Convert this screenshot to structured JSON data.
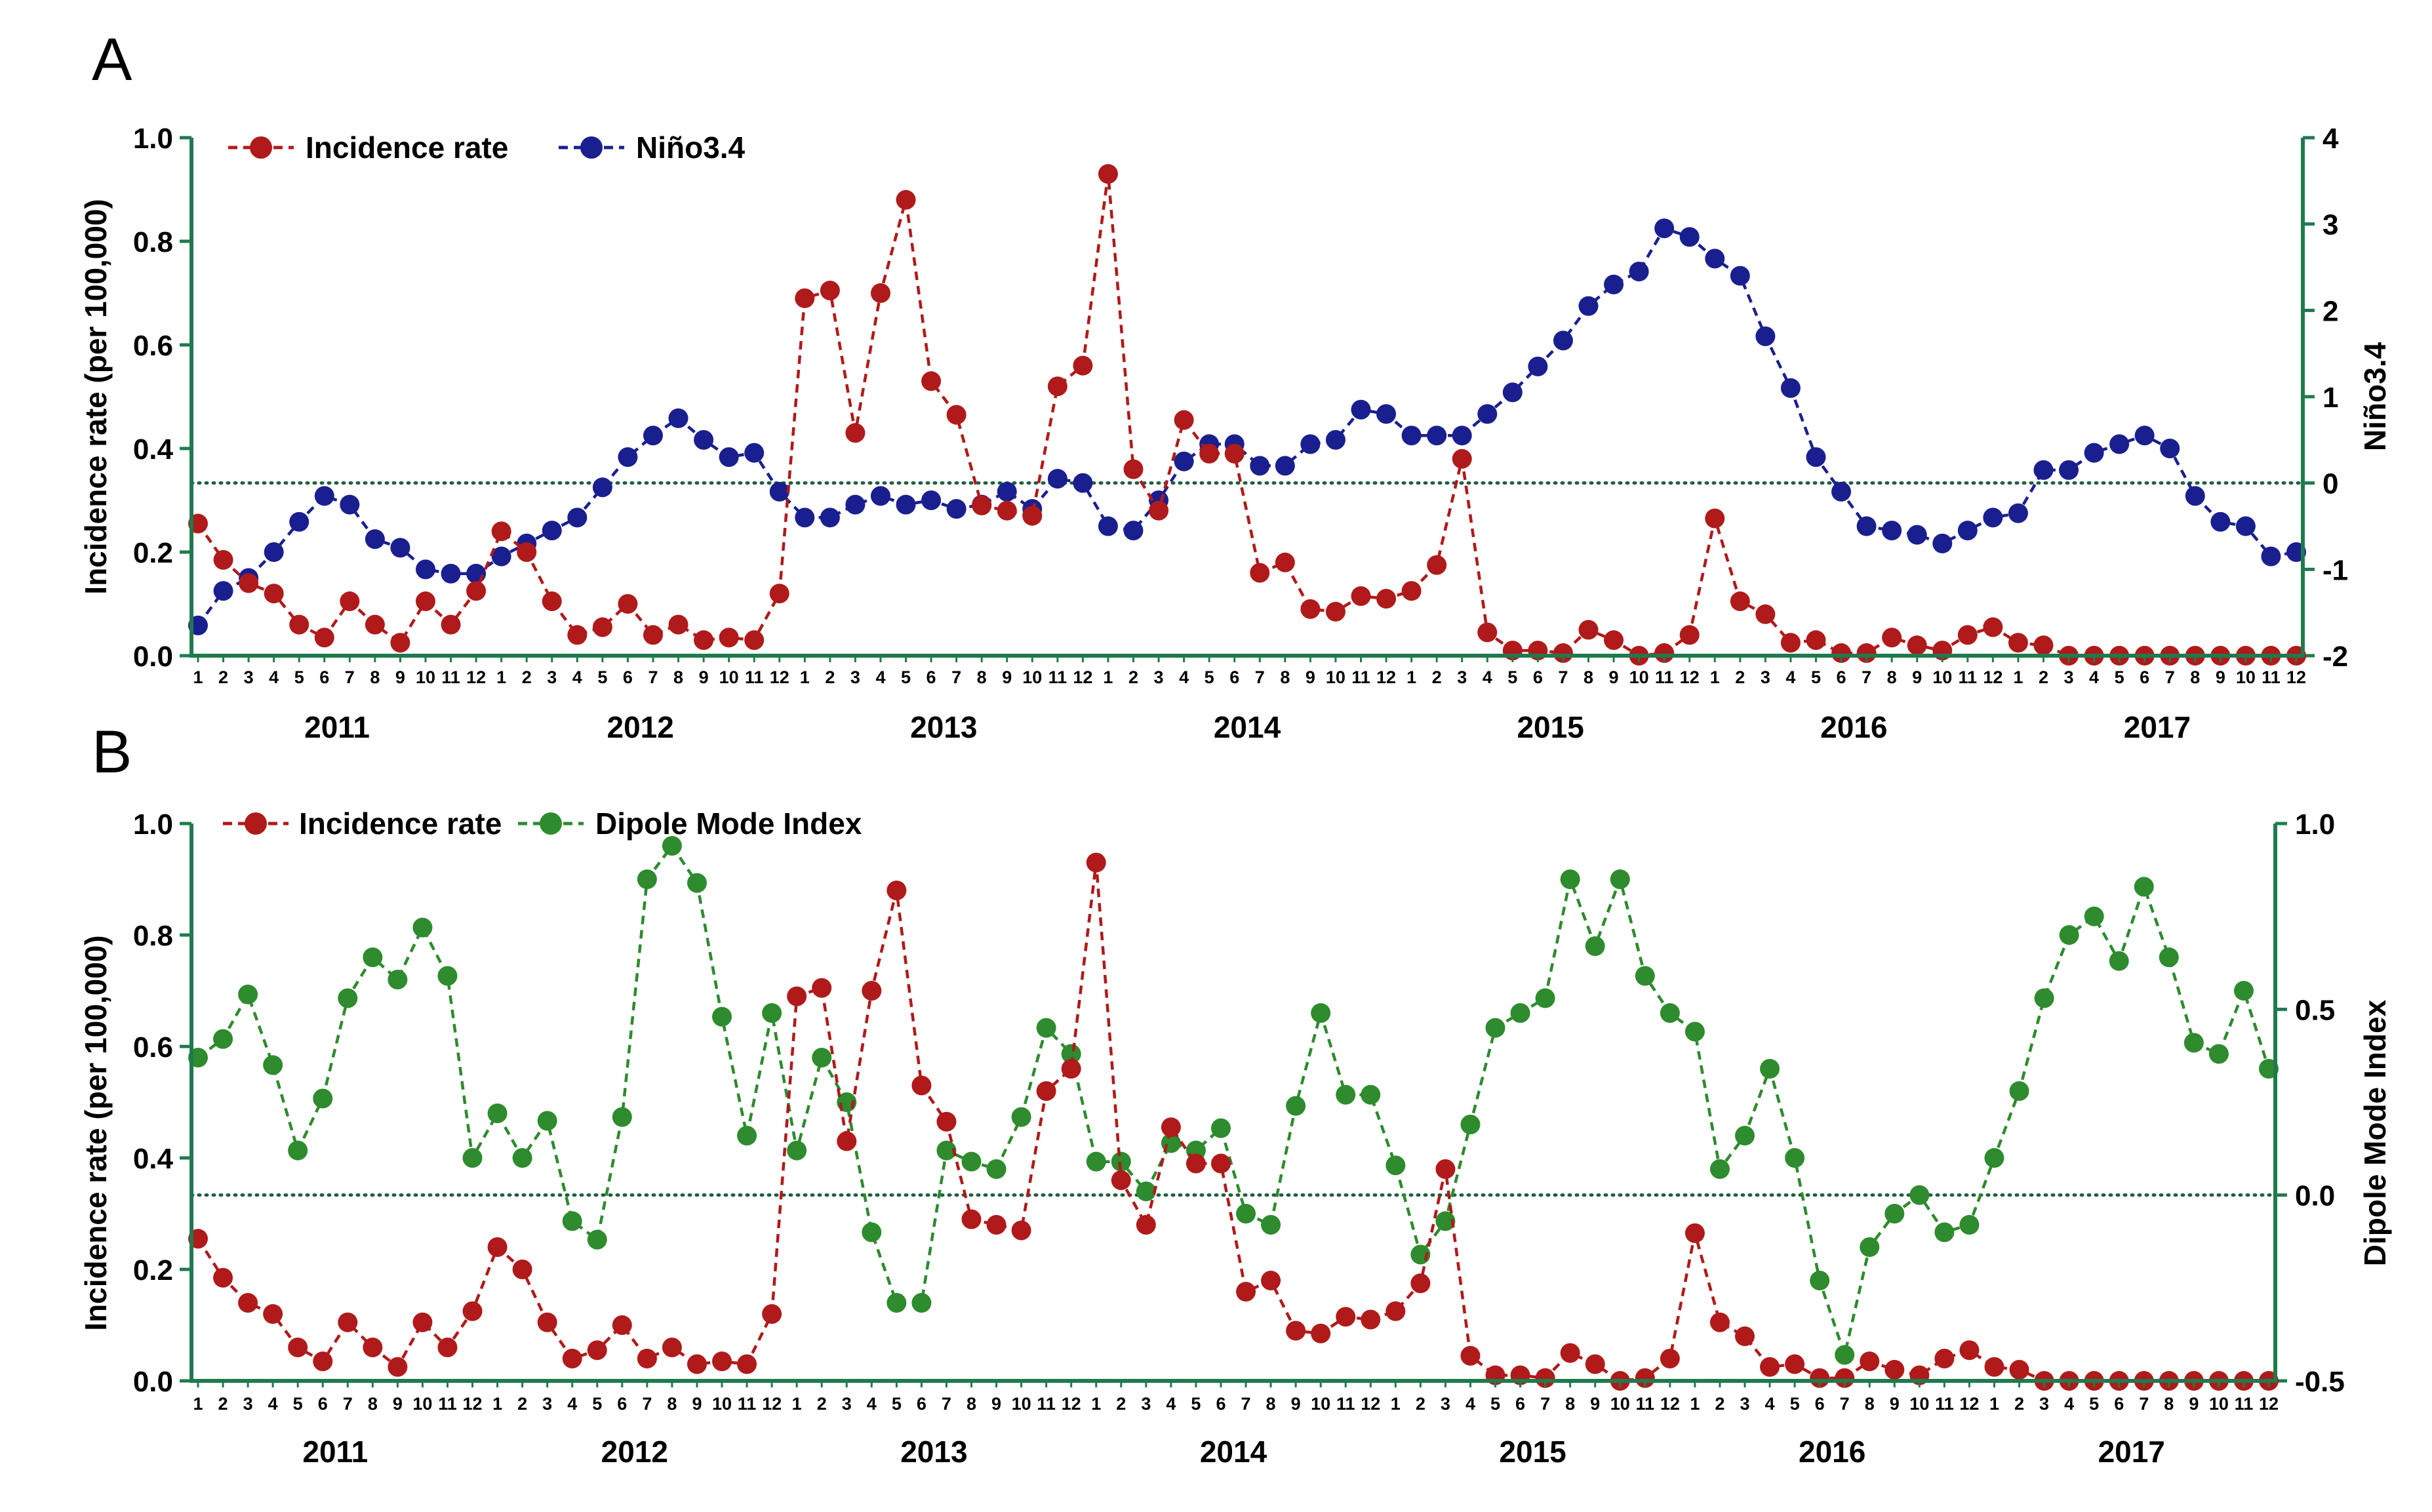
{
  "colors": {
    "axis": "#1f7a4d",
    "incidence": "#b01a1a",
    "nino": "#1a1f8f",
    "dmi": "#2e8b2e",
    "zero_line": "#1f5f3f"
  },
  "month_labels": [
    "1",
    "2",
    "3",
    "4",
    "5",
    "6",
    "7",
    "8",
    "9",
    "10",
    "11",
    "12"
  ],
  "years": [
    "2011",
    "2012",
    "2013",
    "2014",
    "2015",
    "2016",
    "2017"
  ],
  "chart_data": [
    {
      "id": "A",
      "panel_label": "A",
      "type": "line",
      "title": "",
      "xlabel": "",
      "ylabel": "Incidence rate (per 100,000)",
      "y2label": "Niño3.4",
      "ylim": [
        0,
        1.0
      ],
      "y2lim": [
        -2,
        4
      ],
      "yticks": [
        "0.0",
        "0.2",
        "0.4",
        "0.6",
        "0.8",
        "1.0"
      ],
      "y2ticks": [
        "-2",
        "-1",
        "0",
        "1",
        "2",
        "3",
        "4"
      ],
      "reference_line": 0,
      "legend": [
        "Incidence rate",
        "Niño3.4"
      ],
      "legend_position": "top-left",
      "series": [
        {
          "name": "Incidence rate",
          "axis": "left",
          "color_key": "incidence",
          "values": [
            0.255,
            0.185,
            0.14,
            0.12,
            0.06,
            0.035,
            0.105,
            0.06,
            0.025,
            0.105,
            0.06,
            0.125,
            0.24,
            0.2,
            0.105,
            0.04,
            0.055,
            0.1,
            0.04,
            0.06,
            0.03,
            0.035,
            0.03,
            0.12,
            0.69,
            0.705,
            0.43,
            0.7,
            0.88,
            0.53,
            0.465,
            0.29,
            0.28,
            0.27,
            0.52,
            0.56,
            0.93,
            0.36,
            0.28,
            0.455,
            0.39,
            0.39,
            0.16,
            0.18,
            0.09,
            0.085,
            0.115,
            0.11,
            0.125,
            0.175,
            0.38,
            0.045,
            0.01,
            0.01,
            0.005,
            0.05,
            0.03,
            0.0,
            0.005,
            0.04,
            0.265,
            0.105,
            0.08,
            0.025,
            0.03,
            0.005,
            0.005,
            0.035,
            0.02,
            0.01,
            0.04,
            0.055,
            0.025,
            0.02,
            0.0,
            0.0,
            0.0,
            0.0,
            0.0,
            0.0,
            0.0,
            0.0,
            0.0,
            0.0
          ]
        },
        {
          "name": "Niño3.4",
          "axis": "right",
          "color_key": "nino",
          "values": [
            -1.65,
            -1.25,
            -1.1,
            -0.8,
            -0.45,
            -0.15,
            -0.25,
            -0.65,
            -0.75,
            -1.0,
            -1.05,
            -1.05,
            -0.85,
            -0.7,
            -0.55,
            -0.4,
            -0.05,
            0.3,
            0.55,
            0.75,
            0.5,
            0.3,
            0.35,
            -0.1,
            -0.4,
            -0.4,
            -0.25,
            -0.15,
            -0.25,
            -0.2,
            -0.3,
            -0.25,
            -0.1,
            -0.3,
            0.05,
            0.0,
            -0.5,
            -0.55,
            -0.2,
            0.25,
            0.45,
            0.45,
            0.2,
            0.2,
            0.45,
            0.5,
            0.85,
            0.8,
            0.55,
            0.55,
            0.55,
            0.8,
            1.05,
            1.35,
            1.65,
            2.05,
            2.3,
            2.45,
            2.95,
            2.85,
            2.6,
            2.4,
            1.7,
            1.1,
            0.3,
            -0.1,
            -0.5,
            -0.55,
            -0.6,
            -0.7,
            -0.55,
            -0.4,
            -0.35,
            0.15,
            0.15,
            0.35,
            0.45,
            0.55,
            0.4,
            -0.15,
            -0.45,
            -0.5,
            -0.85,
            -0.8
          ]
        }
      ]
    },
    {
      "id": "B",
      "panel_label": "B",
      "type": "line",
      "title": "",
      "xlabel": "",
      "ylabel": "Incidence rate (per 100,000)",
      "y2label": "Dipole Mode Index",
      "ylim": [
        0,
        1.0
      ],
      "y2lim": [
        -0.5,
        1.0
      ],
      "yticks": [
        "0.0",
        "0.2",
        "0.4",
        "0.6",
        "0.8",
        "1.0"
      ],
      "y2ticks": [
        "-0.5",
        "0.0",
        "0.5",
        "1.0"
      ],
      "reference_line": 0,
      "legend": [
        "Incidence rate",
        "Dipole Mode Index"
      ],
      "legend_position": "top-left",
      "series": [
        {
          "name": "Incidence rate",
          "axis": "left",
          "color_key": "incidence",
          "values": [
            0.255,
            0.185,
            0.14,
            0.12,
            0.06,
            0.035,
            0.105,
            0.06,
            0.025,
            0.105,
            0.06,
            0.125,
            0.24,
            0.2,
            0.105,
            0.04,
            0.055,
            0.1,
            0.04,
            0.06,
            0.03,
            0.035,
            0.03,
            0.12,
            0.69,
            0.705,
            0.43,
            0.7,
            0.88,
            0.53,
            0.465,
            0.29,
            0.28,
            0.27,
            0.52,
            0.56,
            0.93,
            0.36,
            0.28,
            0.455,
            0.39,
            0.39,
            0.16,
            0.18,
            0.09,
            0.085,
            0.115,
            0.11,
            0.125,
            0.175,
            0.38,
            0.045,
            0.01,
            0.01,
            0.005,
            0.05,
            0.03,
            0.0,
            0.005,
            0.04,
            0.265,
            0.105,
            0.08,
            0.025,
            0.03,
            0.005,
            0.005,
            0.035,
            0.02,
            0.01,
            0.04,
            0.055,
            0.025,
            0.02,
            0.0,
            0.0,
            0.0,
            0.0,
            0.0,
            0.0,
            0.0,
            0.0,
            0.0,
            0.0
          ]
        },
        {
          "name": "Dipole Mode Index",
          "axis": "right",
          "color_key": "dmi",
          "values": [
            0.37,
            0.42,
            0.54,
            0.35,
            0.12,
            0.26,
            0.53,
            0.64,
            0.58,
            0.72,
            0.59,
            0.1,
            0.22,
            0.1,
            0.2,
            -0.07,
            -0.12,
            0.21,
            0.85,
            0.94,
            0.84,
            0.48,
            0.16,
            0.49,
            0.12,
            0.37,
            0.25,
            -0.1,
            -0.29,
            -0.29,
            0.12,
            0.09,
            0.07,
            0.21,
            0.45,
            0.38,
            0.09,
            0.09,
            0.01,
            0.14,
            0.12,
            0.18,
            -0.05,
            -0.08,
            0.24,
            0.49,
            0.27,
            0.27,
            0.08,
            -0.16,
            -0.07,
            0.19,
            0.45,
            0.49,
            0.53,
            0.85,
            0.67,
            0.85,
            0.59,
            0.49,
            0.44,
            0.07,
            0.16,
            0.34,
            0.1,
            -0.23,
            -0.43,
            -0.14,
            -0.05,
            0.0,
            -0.1,
            -0.08,
            0.1,
            0.28,
            0.53,
            0.7,
            0.75,
            0.63,
            0.83,
            0.64,
            0.41,
            0.38,
            0.55,
            0.34
          ]
        }
      ]
    }
  ]
}
